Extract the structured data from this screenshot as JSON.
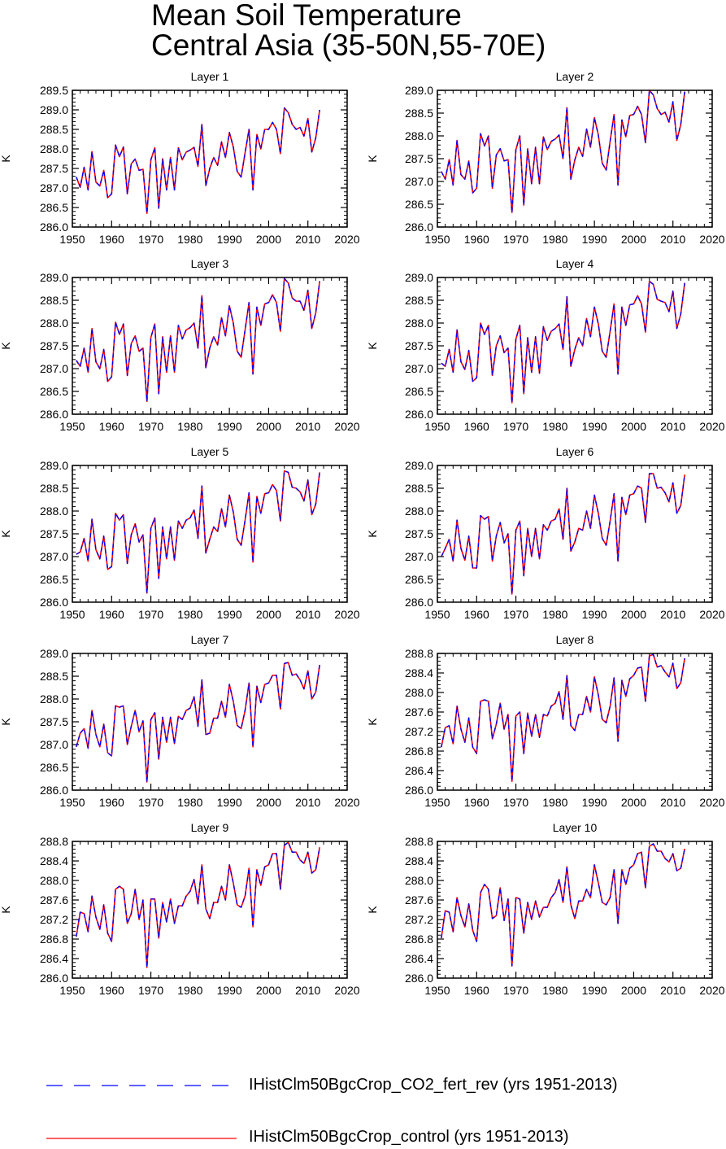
{
  "title": [
    "Mean Soil Temperature",
    "Central Asia (35-50N,55-70E)"
  ],
  "colors": {
    "series_fert": "#0000ff",
    "series_control": "#ff0000",
    "axis": "#000000"
  },
  "legend": [
    {
      "label": "IHistClm50BgcCrop_CO2_fert_rev (yrs 1951-2013)",
      "color": "#0000ff",
      "style": "dashed"
    },
    {
      "label": "IHistClm50BgcCrop_control (yrs 1951-2013)",
      "color": "#ff0000",
      "style": "solid"
    }
  ],
  "chart_data": [
    {
      "type": "line",
      "title": "Layer 1",
      "ylabel": "K",
      "xlim": [
        1950,
        2020
      ],
      "ylim": [
        286.0,
        289.5
      ],
      "xticks": [
        1950,
        1960,
        1970,
        1980,
        1990,
        2000,
        2010,
        2020
      ],
      "yticks": [
        "286.0",
        "286.5",
        "287.0",
        "287.5",
        "288.0",
        "288.5",
        "289.0",
        "289.5"
      ],
      "x_start": 1951,
      "values": [
        287.28,
        287.02,
        287.53,
        286.95,
        287.93,
        287.15,
        287.05,
        287.45,
        286.75,
        286.85,
        288.1,
        287.8,
        288.05,
        286.85,
        287.62,
        287.74,
        287.45,
        287.48,
        286.35,
        287.72,
        288.03,
        286.48,
        287.75,
        286.95,
        287.78,
        286.95,
        288.03,
        287.72,
        287.92,
        287.97,
        288.04,
        287.55,
        288.63,
        287.06,
        287.5,
        287.78,
        287.58,
        288.18,
        287.78,
        288.42,
        288.05,
        287.42,
        287.28,
        287.9,
        288.5,
        286.95,
        288.37,
        288.0,
        288.5,
        288.5,
        288.68,
        288.5,
        287.88,
        289.05,
        288.93,
        288.63,
        288.5,
        288.55,
        288.33,
        288.78,
        287.92,
        288.28,
        289.0
      ],
      "series": [
        {
          "name": "IHistClm50BgcCrop_CO2_fert_rev (yrs 1951-2013)",
          "color": "#0000ff"
        },
        {
          "name": "IHistClm50BgcCrop_control (yrs 1951-2013)",
          "color": "#ff0000"
        }
      ]
    },
    {
      "type": "line",
      "title": "Layer 2",
      "ylabel": "K",
      "xlim": [
        1950,
        2020
      ],
      "ylim": [
        286.0,
        289.0
      ],
      "xticks": [
        1950,
        1960,
        1970,
        1980,
        1990,
        2000,
        2010,
        2020
      ],
      "yticks": [
        "286.0",
        "286.5",
        "287.0",
        "287.5",
        "288.0",
        "288.5",
        "289.0"
      ],
      "x_start": 1951,
      "values": [
        287.22,
        287.05,
        287.48,
        286.92,
        287.9,
        287.15,
        287.05,
        287.45,
        286.75,
        286.85,
        288.05,
        287.78,
        288.0,
        286.85,
        287.58,
        287.72,
        287.45,
        287.48,
        286.32,
        287.7,
        288.0,
        286.48,
        287.72,
        286.95,
        287.75,
        286.95,
        287.98,
        287.7,
        287.88,
        287.93,
        288.02,
        287.5,
        288.62,
        287.05,
        287.47,
        287.75,
        287.55,
        288.15,
        287.75,
        288.4,
        288.02,
        287.4,
        287.25,
        287.88,
        288.47,
        286.92,
        288.35,
        287.98,
        288.45,
        288.47,
        288.65,
        288.47,
        287.85,
        289.0,
        288.9,
        288.6,
        288.47,
        288.52,
        288.3,
        288.75,
        287.9,
        288.25,
        288.97
      ],
      "series": [
        {
          "name": "IHistClm50BgcCrop_CO2_fert_rev (yrs 1951-2013)",
          "color": "#0000ff"
        },
        {
          "name": "IHistClm50BgcCrop_control (yrs 1951-2013)",
          "color": "#ff0000"
        }
      ]
    },
    {
      "type": "line",
      "title": "Layer 3",
      "ylabel": "K",
      "xlim": [
        1950,
        2020
      ],
      "ylim": [
        286.0,
        289.0
      ],
      "xticks": [
        1950,
        1960,
        1970,
        1980,
        1990,
        2000,
        2010,
        2020
      ],
      "yticks": [
        "286.0",
        "286.5",
        "287.0",
        "287.5",
        "288.0",
        "288.5",
        "289.0"
      ],
      "x_start": 1951,
      "values": [
        287.18,
        287.05,
        287.45,
        286.92,
        287.88,
        287.15,
        287.0,
        287.42,
        286.72,
        286.82,
        288.02,
        287.75,
        287.98,
        286.85,
        287.55,
        287.72,
        287.38,
        287.45,
        286.28,
        287.68,
        287.98,
        286.45,
        287.7,
        286.92,
        287.72,
        286.92,
        287.95,
        287.65,
        287.85,
        287.9,
        288.0,
        287.45,
        288.6,
        287.02,
        287.45,
        287.7,
        287.52,
        288.12,
        287.72,
        288.38,
        288.0,
        287.38,
        287.25,
        287.85,
        288.45,
        286.88,
        288.35,
        287.95,
        288.42,
        288.45,
        288.62,
        288.45,
        287.82,
        288.98,
        288.88,
        288.55,
        288.48,
        288.48,
        288.28,
        288.72,
        287.88,
        288.22,
        288.92
      ],
      "series": [
        {
          "name": "IHistClm50BgcCrop_CO2_fert_rev (yrs 1951-2013)",
          "color": "#0000ff"
        },
        {
          "name": "IHistClm50BgcCrop_control (yrs 1951-2013)",
          "color": "#ff0000"
        }
      ]
    },
    {
      "type": "line",
      "title": "Layer 4",
      "ylabel": "K",
      "xlim": [
        1950,
        2020
      ],
      "ylim": [
        286.0,
        289.0
      ],
      "xticks": [
        1950,
        1960,
        1970,
        1980,
        1990,
        2000,
        2010,
        2020
      ],
      "yticks": [
        "286.0",
        "286.5",
        "287.0",
        "287.5",
        "288.0",
        "288.5",
        "289.0"
      ],
      "x_start": 1951,
      "values": [
        287.12,
        287.05,
        287.42,
        286.92,
        287.85,
        287.15,
        286.98,
        287.4,
        286.72,
        286.8,
        288.0,
        287.75,
        287.95,
        286.85,
        287.5,
        287.72,
        287.35,
        287.45,
        286.25,
        287.65,
        287.95,
        286.45,
        287.68,
        286.92,
        287.7,
        286.9,
        287.92,
        287.62,
        287.82,
        287.88,
        287.98,
        287.42,
        288.58,
        287.05,
        287.42,
        287.68,
        287.5,
        288.1,
        287.7,
        288.35,
        287.98,
        287.38,
        287.25,
        287.82,
        288.42,
        286.88,
        288.35,
        287.95,
        288.4,
        288.42,
        288.6,
        288.42,
        287.8,
        288.92,
        288.85,
        288.52,
        288.48,
        288.45,
        288.25,
        288.7,
        287.88,
        288.2,
        288.88
      ],
      "series": [
        {
          "name": "IHistClm50BgcCrop_CO2_fert_rev (yrs 1951-2013)",
          "color": "#0000ff"
        },
        {
          "name": "IHistClm50BgcCrop_control (yrs 1951-2013)",
          "color": "#ff0000"
        }
      ]
    },
    {
      "type": "line",
      "title": "Layer 5",
      "ylabel": "K",
      "xlim": [
        1950,
        2020
      ],
      "ylim": [
        286.0,
        289.0
      ],
      "xticks": [
        1950,
        1960,
        1970,
        1980,
        1990,
        2000,
        2010,
        2020
      ],
      "yticks": [
        "286.0",
        "286.5",
        "287.0",
        "287.5",
        "288.0",
        "288.5",
        "289.0"
      ],
      "x_start": 1951,
      "values": [
        287.05,
        287.1,
        287.4,
        286.9,
        287.82,
        287.15,
        286.95,
        287.45,
        286.72,
        286.78,
        287.95,
        287.8,
        287.92,
        286.85,
        287.48,
        287.72,
        287.32,
        287.48,
        286.2,
        287.62,
        287.85,
        286.52,
        287.65,
        286.95,
        287.65,
        286.92,
        287.78,
        287.62,
        287.8,
        287.85,
        288.02,
        287.4,
        288.55,
        287.08,
        287.38,
        287.65,
        287.55,
        288.05,
        287.65,
        288.35,
        287.98,
        287.38,
        287.25,
        287.8,
        288.4,
        286.88,
        288.32,
        287.95,
        288.38,
        288.4,
        288.58,
        288.45,
        287.78,
        288.88,
        288.85,
        288.52,
        288.5,
        288.42,
        288.22,
        288.68,
        287.92,
        288.15,
        288.85
      ],
      "series": [
        {
          "name": "IHistClm50BgcCrop_CO2_fert_rev (yrs 1951-2013)",
          "color": "#0000ff"
        },
        {
          "name": "IHistClm50BgcCrop_control (yrs 1951-2013)",
          "color": "#ff0000"
        }
      ]
    },
    {
      "type": "line",
      "title": "Layer 6",
      "ylabel": "K",
      "xlim": [
        1950,
        2020
      ],
      "ylim": [
        286.0,
        289.0
      ],
      "xticks": [
        1950,
        1960,
        1970,
        1980,
        1990,
        2000,
        2010,
        2020
      ],
      "yticks": [
        "286.0",
        "286.5",
        "287.0",
        "287.5",
        "288.0",
        "288.5",
        "289.0"
      ],
      "x_start": 1951,
      "values": [
        287.0,
        287.18,
        287.38,
        286.9,
        287.8,
        287.18,
        286.92,
        287.45,
        286.75,
        286.75,
        287.9,
        287.82,
        287.88,
        286.9,
        287.45,
        287.75,
        287.3,
        287.5,
        286.18,
        287.58,
        287.78,
        286.58,
        287.62,
        287.0,
        287.62,
        286.95,
        287.7,
        287.58,
        287.78,
        287.82,
        288.05,
        287.38,
        288.5,
        287.12,
        287.32,
        287.62,
        287.58,
        288.0,
        287.62,
        288.35,
        287.95,
        287.4,
        287.25,
        287.78,
        288.38,
        286.9,
        288.3,
        287.92,
        288.35,
        288.38,
        288.55,
        288.5,
        287.75,
        288.82,
        288.82,
        288.5,
        288.52,
        288.4,
        288.2,
        288.62,
        287.95,
        288.12,
        288.8
      ],
      "series": [
        {
          "name": "IHistClm50BgcCrop_CO2_fert_rev (yrs 1951-2013)",
          "color": "#0000ff"
        },
        {
          "name": "IHistClm50BgcCrop_control (yrs 1951-2013)",
          "color": "#ff0000"
        }
      ]
    },
    {
      "type": "line",
      "title": "Layer 7",
      "ylabel": "K",
      "xlim": [
        1950,
        2020
      ],
      "ylim": [
        286.0,
        289.0
      ],
      "xticks": [
        1950,
        1960,
        1970,
        1980,
        1990,
        2000,
        2010,
        2020
      ],
      "yticks": [
        "286.0",
        "286.5",
        "287.0",
        "287.5",
        "288.0",
        "288.5",
        "289.0"
      ],
      "x_start": 1951,
      "values": [
        286.95,
        287.25,
        287.35,
        286.92,
        287.75,
        287.22,
        286.95,
        287.45,
        286.82,
        286.75,
        287.85,
        287.82,
        287.85,
        287.0,
        287.4,
        287.75,
        287.28,
        287.52,
        286.18,
        287.55,
        287.7,
        286.68,
        287.6,
        287.05,
        287.6,
        287.02,
        287.62,
        287.55,
        287.75,
        287.8,
        288.05,
        287.4,
        288.42,
        287.22,
        287.25,
        287.58,
        287.58,
        287.95,
        287.6,
        288.32,
        287.95,
        287.42,
        287.35,
        287.75,
        288.35,
        286.95,
        288.28,
        287.92,
        288.32,
        288.35,
        288.52,
        288.52,
        287.78,
        288.78,
        288.8,
        288.52,
        288.55,
        288.42,
        288.22,
        288.62,
        288.0,
        288.15,
        288.75
      ],
      "series": [
        {
          "name": "IHistClm50BgcCrop_CO2_fert_rev (yrs 1951-2013)",
          "color": "#0000ff"
        },
        {
          "name": "IHistClm50BgcCrop_control (yrs 1951-2013)",
          "color": "#ff0000"
        }
      ]
    },
    {
      "type": "line",
      "title": "Layer 8",
      "ylabel": "K",
      "xlim": [
        1950,
        2020
      ],
      "ylim": [
        286.0,
        288.8
      ],
      "xticks": [
        1950,
        1960,
        1970,
        1980,
        1990,
        2000,
        2010,
        2020
      ],
      "yticks": [
        "286.0",
        "286.4",
        "286.8",
        "287.2",
        "287.6",
        "288.0",
        "288.4",
        "288.8"
      ],
      "x_start": 1951,
      "values": [
        286.88,
        287.28,
        287.32,
        286.95,
        287.72,
        287.25,
        286.98,
        287.48,
        286.88,
        286.75,
        287.82,
        287.85,
        287.82,
        287.05,
        287.35,
        287.78,
        287.25,
        287.55,
        286.18,
        287.52,
        287.6,
        286.75,
        287.58,
        287.1,
        287.55,
        287.08,
        287.55,
        287.52,
        287.72,
        287.78,
        288.02,
        287.45,
        288.35,
        287.32,
        287.22,
        287.55,
        287.55,
        287.92,
        287.6,
        288.32,
        287.95,
        287.45,
        287.38,
        287.72,
        288.3,
        287.0,
        288.25,
        287.92,
        288.28,
        288.35,
        288.5,
        288.52,
        287.82,
        288.75,
        288.78,
        288.52,
        288.55,
        288.42,
        288.32,
        288.6,
        288.08,
        288.2,
        288.7
      ],
      "series": [
        {
          "name": "IHistClm50BgcCrop_CO2_fert_rev (yrs 1951-2013)",
          "color": "#0000ff"
        },
        {
          "name": "IHistClm50BgcCrop_control (yrs 1951-2013)",
          "color": "#ff0000"
        }
      ]
    },
    {
      "type": "line",
      "title": "Layer 9",
      "ylabel": "K",
      "xlim": [
        1950,
        2020
      ],
      "ylim": [
        286.0,
        288.8
      ],
      "xticks": [
        1950,
        1960,
        1970,
        1980,
        1990,
        2000,
        2010,
        2020
      ],
      "yticks": [
        "286.0",
        "286.4",
        "286.8",
        "287.2",
        "287.6",
        "288.0",
        "288.4",
        "288.8"
      ],
      "x_start": 1951,
      "values": [
        286.85,
        287.35,
        287.32,
        286.95,
        287.68,
        287.25,
        287.0,
        287.5,
        286.92,
        286.75,
        287.82,
        287.88,
        287.82,
        287.12,
        287.32,
        287.82,
        287.2,
        287.6,
        286.22,
        287.62,
        287.62,
        286.82,
        287.55,
        287.15,
        287.62,
        287.12,
        287.48,
        287.48,
        287.68,
        287.78,
        288.02,
        287.52,
        288.32,
        287.42,
        287.22,
        287.55,
        287.55,
        287.88,
        287.6,
        288.32,
        287.95,
        287.5,
        287.45,
        287.68,
        288.25,
        287.05,
        288.22,
        287.9,
        288.28,
        288.32,
        288.55,
        288.55,
        287.82,
        288.72,
        288.78,
        288.58,
        288.58,
        288.42,
        288.35,
        288.58,
        288.15,
        288.22,
        288.68
      ],
      "series": [
        {
          "name": "IHistClm50BgcCrop_CO2_fert_rev (yrs 1951-2013)",
          "color": "#0000ff"
        },
        {
          "name": "IHistClm50BgcCrop_control (yrs 1951-2013)",
          "color": "#ff0000"
        }
      ]
    },
    {
      "type": "line",
      "title": "Layer 10",
      "ylabel": "K",
      "xlim": [
        1950,
        2020
      ],
      "ylim": [
        286.0,
        288.8
      ],
      "xticks": [
        1950,
        1960,
        1970,
        1980,
        1990,
        2000,
        2010,
        2020
      ],
      "yticks": [
        "286.0",
        "286.4",
        "286.8",
        "287.2",
        "287.6",
        "288.0",
        "288.4",
        "288.8"
      ],
      "x_start": 1951,
      "values": [
        286.82,
        287.38,
        287.35,
        286.95,
        287.65,
        287.28,
        287.05,
        287.52,
        286.98,
        286.75,
        287.75,
        287.92,
        287.82,
        287.22,
        287.28,
        287.85,
        287.18,
        287.62,
        286.25,
        287.65,
        287.62,
        286.92,
        287.55,
        287.2,
        287.58,
        287.25,
        287.45,
        287.45,
        287.65,
        287.75,
        288.02,
        287.55,
        288.28,
        287.5,
        287.22,
        287.58,
        287.58,
        287.82,
        287.65,
        288.32,
        287.95,
        287.55,
        287.5,
        287.65,
        288.22,
        287.12,
        288.22,
        287.92,
        288.25,
        288.32,
        288.55,
        288.58,
        287.85,
        288.7,
        288.75,
        288.6,
        288.6,
        288.45,
        288.38,
        288.55,
        288.2,
        288.25,
        288.65
      ],
      "series": [
        {
          "name": "IHistClm50BgcCrop_CO2_fert_rev (yrs 1951-2013)",
          "color": "#0000ff"
        },
        {
          "name": "IHistClm50BgcCrop_control (yrs 1951-2013)",
          "color": "#ff0000"
        }
      ]
    }
  ]
}
